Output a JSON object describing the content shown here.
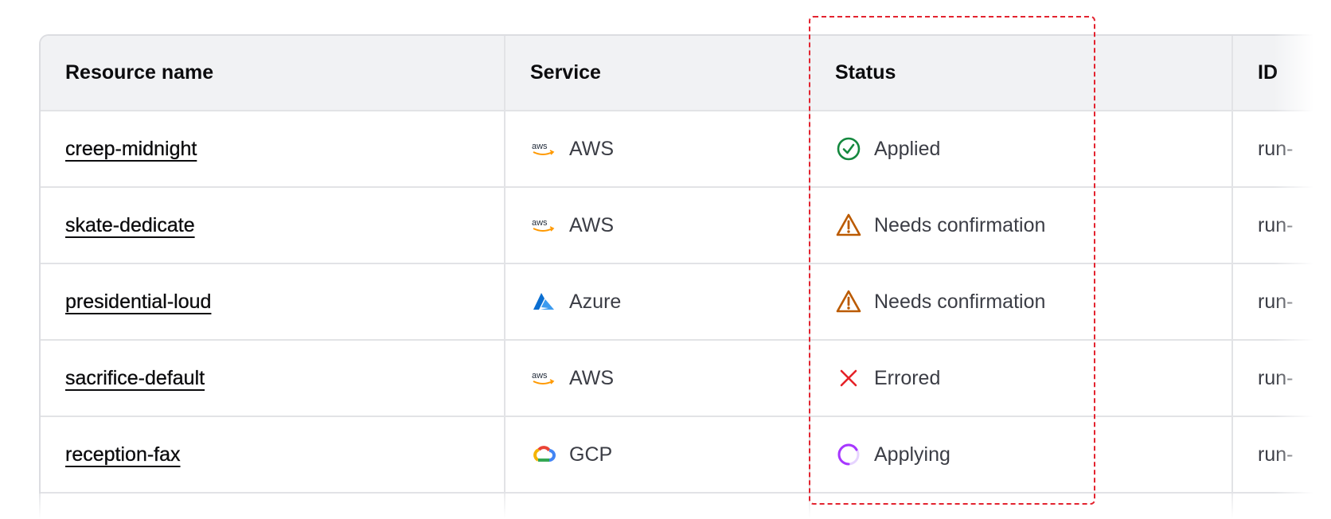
{
  "table": {
    "columns": [
      "Resource name",
      "Service",
      "Status",
      "ID"
    ],
    "rows": [
      {
        "name": "creep-midnight",
        "service": "AWS",
        "service_icon": "aws-logo",
        "status": "Applied",
        "status_icon": "check-circle",
        "id": "run-"
      },
      {
        "name": "skate-dedicate",
        "service": "AWS",
        "service_icon": "aws-logo",
        "status": "Needs confirmation",
        "status_icon": "warning-triangle",
        "id": "run-"
      },
      {
        "name": "presidential-loud",
        "service": "Azure",
        "service_icon": "azure-logo",
        "status": "Needs confirmation",
        "status_icon": "warning-triangle",
        "id": "run-"
      },
      {
        "name": "sacrifice-default",
        "service": "AWS",
        "service_icon": "aws-logo",
        "status": "Errored",
        "status_icon": "x-mark",
        "id": "run-"
      },
      {
        "name": "reception-fax",
        "service": "GCP",
        "service_icon": "gcp-logo",
        "status": "Applying",
        "status_icon": "spinner",
        "id": "run-"
      }
    ]
  },
  "colors": {
    "applied": "#14883e",
    "warning": "#bb5a00",
    "errored": "#e52228",
    "applying": "#a737ff",
    "highlight": "#e3232f"
  }
}
